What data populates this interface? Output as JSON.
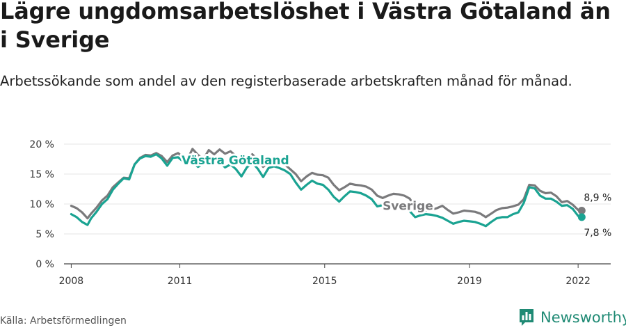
{
  "title": "Lägre ungdomsarbetslöshet i Västra Götaland än i Sverige",
  "subtitle": "Arbetssökande som andel av den registerbaserade arbetskraften månad för månad.",
  "source": "Källa: Arbetsförmedlingen",
  "brand": {
    "name": "Newsworthy",
    "logo_icon": "bar-chart-logo-icon"
  },
  "colors": {
    "sverige": "#7a7a7c",
    "vastra_gotaland": "#1aa392",
    "axis": "#444444",
    "grid": "#e6e6e6",
    "brand": "#1f8a74"
  },
  "chart_data": {
    "type": "line",
    "title": "",
    "xlabel": "",
    "ylabel": "",
    "ylim": [
      0,
      20
    ],
    "xlim": [
      2007.8,
      2022.9
    ],
    "grid": "horizontal",
    "y_ticks": [
      0,
      5,
      10,
      15,
      20
    ],
    "y_tick_labels": [
      "0 %",
      "5 %",
      "10 %",
      "15 %",
      "20 %"
    ],
    "x_ticks": [
      2008,
      2011,
      2015,
      2019,
      2022
    ],
    "x_tick_labels": [
      "2008",
      "2011",
      "2015",
      "2019",
      "2022"
    ],
    "series": [
      {
        "name": "Sverige",
        "color": "#7a7a7c",
        "end_label": "8,9 %",
        "x": [
          2008.0,
          2008.15,
          2008.3,
          2008.45,
          2008.55,
          2008.7,
          2008.85,
          2009.0,
          2009.15,
          2009.3,
          2009.45,
          2009.6,
          2009.75,
          2009.9,
          2010.05,
          2010.2,
          2010.35,
          2010.5,
          2010.65,
          2010.8,
          2010.95,
          2011.05,
          2011.2,
          2011.35,
          2011.5,
          2011.65,
          2011.8,
          2011.95,
          2012.1,
          2012.25,
          2012.4,
          2012.55,
          2012.7,
          2012.85,
          2013.0,
          2013.15,
          2013.3,
          2013.45,
          2013.6,
          2013.75,
          2013.9,
          2014.05,
          2014.2,
          2014.35,
          2014.5,
          2014.65,
          2014.8,
          2014.95,
          2015.1,
          2015.25,
          2015.4,
          2015.55,
          2015.7,
          2015.85,
          2016.0,
          2016.15,
          2016.3,
          2016.45,
          2016.6,
          2016.75,
          2016.9,
          2017.05,
          2017.2,
          2017.35,
          2017.5,
          2017.65,
          2017.8,
          2017.95,
          2018.1,
          2018.25,
          2018.4,
          2018.55,
          2018.7,
          2018.85,
          2019.0,
          2019.15,
          2019.3,
          2019.45,
          2019.6,
          2019.75,
          2019.9,
          2020.05,
          2020.2,
          2020.35,
          2020.5,
          2020.65,
          2020.8,
          2020.95,
          2021.1,
          2021.25,
          2021.4,
          2021.55,
          2021.7,
          2021.85,
          2022.0,
          2022.1
        ],
        "values": [
          9.7,
          9.3,
          8.6,
          7.6,
          8.4,
          9.4,
          10.6,
          11.4,
          12.8,
          13.6,
          14.4,
          14.3,
          16.6,
          17.7,
          18.2,
          18.1,
          18.5,
          18.0,
          17.0,
          18.1,
          18.5,
          18.0,
          17.4,
          19.2,
          18.2,
          17.5,
          19.0,
          18.3,
          19.1,
          18.4,
          18.8,
          18.0,
          17.0,
          17.6,
          18.3,
          17.4,
          16.2,
          17.0,
          16.8,
          16.9,
          16.6,
          15.8,
          15.0,
          13.8,
          14.6,
          15.2,
          14.9,
          14.8,
          14.4,
          13.2,
          12.3,
          12.8,
          13.4,
          13.2,
          13.1,
          12.9,
          12.4,
          11.4,
          11.0,
          11.4,
          11.7,
          11.6,
          11.4,
          10.9,
          9.4,
          8.6,
          8.9,
          9.0,
          9.3,
          9.7,
          9.0,
          8.4,
          8.6,
          8.9,
          8.8,
          8.7,
          8.4,
          7.8,
          8.4,
          9.0,
          9.3,
          9.4,
          9.6,
          9.9,
          10.8,
          13.2,
          13.1,
          12.2,
          11.8,
          11.9,
          11.3,
          10.3,
          10.5,
          9.9,
          9.0,
          8.9
        ]
      },
      {
        "name": "Västra Götaland",
        "color": "#1aa392",
        "end_label": "7,8 %",
        "x": [
          2008.0,
          2008.15,
          2008.3,
          2008.45,
          2008.55,
          2008.7,
          2008.85,
          2009.0,
          2009.15,
          2009.3,
          2009.45,
          2009.6,
          2009.75,
          2009.9,
          2010.05,
          2010.2,
          2010.35,
          2010.5,
          2010.65,
          2010.8,
          2010.95,
          2011.05,
          2011.2,
          2011.35,
          2011.5,
          2011.65,
          2011.8,
          2011.95,
          2012.1,
          2012.25,
          2012.4,
          2012.55,
          2012.7,
          2012.85,
          2013.0,
          2013.15,
          2013.3,
          2013.45,
          2013.6,
          2013.75,
          2013.9,
          2014.05,
          2014.2,
          2014.35,
          2014.5,
          2014.65,
          2014.8,
          2014.95,
          2015.1,
          2015.25,
          2015.4,
          2015.55,
          2015.7,
          2015.85,
          2016.0,
          2016.15,
          2016.3,
          2016.45,
          2016.6,
          2016.75,
          2016.9,
          2017.05,
          2017.2,
          2017.35,
          2017.5,
          2017.65,
          2017.8,
          2017.95,
          2018.1,
          2018.25,
          2018.4,
          2018.55,
          2018.7,
          2018.85,
          2019.0,
          2019.15,
          2019.3,
          2019.45,
          2019.6,
          2019.75,
          2019.9,
          2020.05,
          2020.2,
          2020.35,
          2020.5,
          2020.65,
          2020.8,
          2020.95,
          2021.1,
          2021.25,
          2021.4,
          2021.55,
          2021.7,
          2021.85,
          2022.0,
          2022.1
        ],
        "values": [
          8.3,
          7.8,
          7.0,
          6.5,
          7.6,
          8.7,
          10.0,
          10.8,
          12.4,
          13.4,
          14.3,
          14.1,
          16.6,
          17.6,
          18.0,
          17.9,
          18.3,
          17.6,
          16.4,
          17.7,
          17.8,
          17.3,
          16.7,
          17.0,
          16.2,
          16.7,
          17.2,
          16.7,
          17.1,
          16.1,
          16.6,
          15.8,
          14.6,
          16.1,
          16.9,
          15.9,
          14.5,
          16.0,
          16.3,
          16.0,
          15.6,
          15.0,
          13.6,
          12.4,
          13.2,
          13.9,
          13.4,
          13.2,
          12.4,
          11.2,
          10.4,
          11.3,
          12.1,
          12.0,
          11.8,
          11.4,
          10.8,
          9.6,
          9.8,
          10.0,
          10.1,
          10.0,
          9.6,
          8.8,
          7.8,
          8.1,
          8.3,
          8.2,
          8.0,
          7.7,
          7.2,
          6.7,
          7.0,
          7.2,
          7.1,
          7.0,
          6.7,
          6.3,
          7.0,
          7.6,
          7.8,
          7.8,
          8.3,
          8.6,
          10.2,
          12.8,
          12.6,
          11.4,
          10.9,
          10.9,
          10.4,
          9.7,
          9.8,
          9.2,
          8.0,
          7.8
        ]
      }
    ]
  }
}
